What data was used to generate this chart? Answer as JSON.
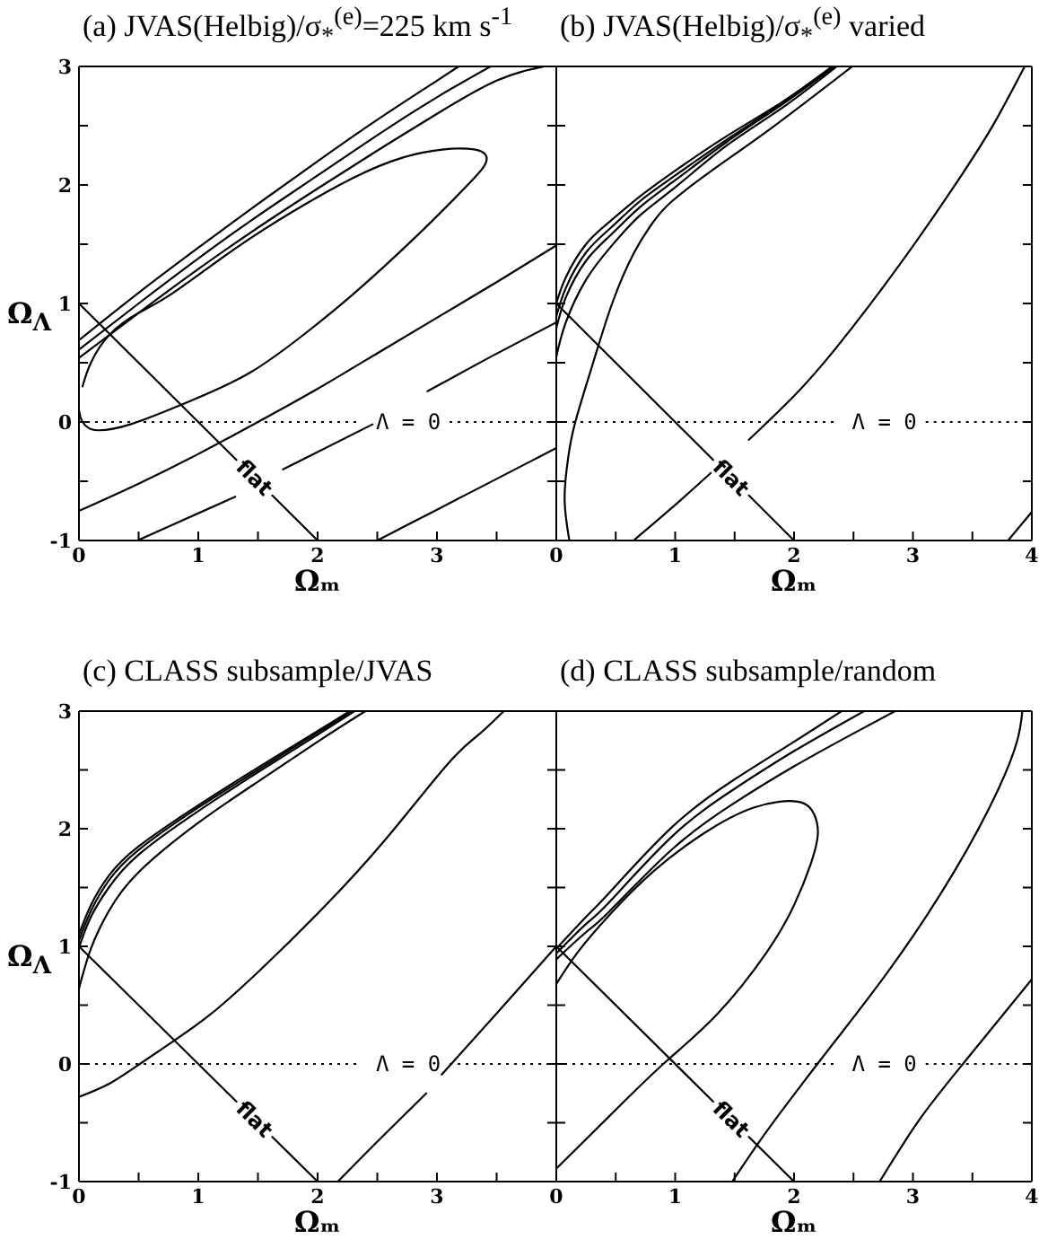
{
  "chart_data": [
    {
      "type": "line",
      "title": "(a) JVAS(Helbig)/σ$_{*}$$^{(e)}$=225 km s$^{-1}$",
      "xlabel": "Ωₘ",
      "ylabel": "Ω$_{Λ}$",
      "xlim": [
        0,
        4
      ],
      "ylim": [
        -1,
        3
      ],
      "xticks": [
        0,
        {
          "value": 0.5,
          "label": null
        },
        1,
        {
          "value": 1.5,
          "label": null
        },
        2,
        {
          "value": 2.5,
          "label": null
        },
        3,
        {
          "value": 3.5,
          "label": null
        },
        {
          "value": 4,
          "label": null
        }
      ],
      "yticks": [
        -1,
        {
          "value": -0.5,
          "label": null
        },
        0,
        {
          "value": 0.5,
          "label": null
        },
        1,
        {
          "value": 1.5,
          "label": null
        },
        2,
        {
          "value": 2.5,
          "label": null
        },
        3
      ],
      "ref_lines": [
        {
          "axis": "y",
          "value": 0,
          "label": "Λ = 0",
          "line_style": "dotted",
          "color": "#000000"
        }
      ],
      "series": [
        {
          "color": "#000000",
          "x": [
            0,
            0.5,
            1,
            1.5,
            2,
            2.5,
            3,
            3.18
          ],
          "values": [
            0.69,
            1.09,
            1.47,
            1.84,
            2.2,
            2.55,
            2.88,
            3
          ]
        },
        {
          "color": "#000000",
          "x": [
            0,
            0.5,
            1,
            1.5,
            2,
            2.5,
            3,
            3.45
          ],
          "values": [
            0.61,
            1,
            1.38,
            1.74,
            2.08,
            2.42,
            2.74,
            3
          ]
        },
        {
          "color": "#000000",
          "x": [
            0,
            0.5,
            1,
            1.5,
            2,
            2.5,
            3,
            3.5,
            3.9
          ],
          "values": [
            0.54,
            0.92,
            1.29,
            1.64,
            1.97,
            2.29,
            2.6,
            2.88,
            3
          ]
        },
        {
          "color": "#000000",
          "x": [
            0,
            0,
            0.03,
            0.08,
            0.16,
            0.43,
            0.94,
            1.44,
            1.9,
            2.3,
            2.81,
            3.21,
            3.39,
            3.41,
            3.31,
            3.06,
            2.71,
            2.3,
            1.8,
            1.29,
            0.79,
            0.5,
            0.26,
            0.1,
            0.03
          ],
          "values": [
            0.2,
            0.1,
            0,
            -0.05,
            -0.07,
            -0.02,
            0.18,
            0.42,
            0.75,
            1.08,
            1.55,
            1.95,
            2.15,
            2.25,
            2.3,
            2.3,
            2.23,
            2.06,
            1.78,
            1.45,
            1.09,
            0.92,
            0.74,
            0.5,
            0.3
          ]
        },
        {
          "color": "#000000",
          "x": [
            0,
            0.5,
            1,
            1.5,
            2,
            2.5,
            3,
            3.5,
            4
          ],
          "values": [
            -0.75,
            -0.52,
            -0.27,
            0,
            0.28,
            0.58,
            0.88,
            1.18,
            1.49
          ]
        },
        {
          "color": "#000000",
          "x": [
            0.49,
            1.31,
            1.51,
            1.71,
            2.46,
            2.69,
            2.92,
            3.45,
            4
          ],
          "values": [
            -1,
            -0.63,
            null,
            -0.4,
            -0.02,
            null,
            0.26,
            0.55,
            0.84
          ]
        },
        {
          "color": "#000000",
          "x": [
            2.5,
            3,
            3.5,
            4
          ],
          "values": [
            -1,
            -0.74,
            -0.48,
            -0.22
          ]
        },
        {
          "name": "flat",
          "color": "#000000",
          "x": [
            0,
            1.32,
            1.47,
            1.62,
            2
          ],
          "values": [
            1,
            -0.32,
            null,
            -0.62,
            -1
          ]
        }
      ]
    },
    {
      "type": "line",
      "title": "(b) JVAS(Helbig)/σ$_{*}$$^{(e)}$ varied",
      "xlabel": "Ωₘ",
      "xlim": [
        0,
        4
      ],
      "ylim": [
        -1,
        3
      ],
      "tick_labels": "x",
      "xticks": [
        0,
        {
          "value": 0.5,
          "label": null
        },
        1,
        {
          "value": 1.5,
          "label": null
        },
        2,
        {
          "value": 2.5,
          "label": null
        },
        3,
        {
          "value": 3.5,
          "label": null
        },
        4
      ],
      "yticks": [
        -1,
        {
          "value": -0.5,
          "label": null
        },
        0,
        {
          "value": 0.5,
          "label": null
        },
        1,
        {
          "value": 1.5,
          "label": null
        },
        2,
        {
          "value": 2.5,
          "label": null
        },
        3
      ],
      "ref_lines": [
        {
          "axis": "y",
          "value": 0,
          "label": "Λ = 0",
          "line_style": "dotted",
          "color": "#000000"
        }
      ],
      "series": [
        {
          "color": "#000000",
          "x": [
            0,
            0.08,
            0.25,
            0.46,
            0.7,
            1,
            1.43,
            1.9,
            2.32
          ],
          "values": [
            1,
            1.22,
            1.5,
            1.7,
            1.9,
            2.12,
            2.41,
            2.7,
            3
          ]
        },
        {
          "color": "#000000",
          "x": [
            0,
            0.08,
            0.25,
            0.46,
            0.7,
            1,
            1.43,
            1.9,
            2.33
          ],
          "values": [
            0.89,
            1.13,
            1.43,
            1.64,
            1.86,
            2.08,
            2.38,
            2.69,
            3
          ]
        },
        {
          "color": "#000000",
          "x": [
            0,
            0.08,
            0.25,
            0.46,
            0.7,
            1,
            1.43,
            1.9,
            2.34
          ],
          "values": [
            0.79,
            1.05,
            1.36,
            1.58,
            1.81,
            2.04,
            2.36,
            2.68,
            3
          ]
        },
        {
          "color": "#000000",
          "x": [
            0,
            0.08,
            0.25,
            0.46,
            0.7,
            1,
            1.43,
            1.9,
            2.36
          ],
          "values": [
            0.55,
            0.84,
            1.2,
            1.48,
            1.74,
            1.98,
            2.33,
            2.65,
            3
          ]
        },
        {
          "color": "#000000",
          "x": [
            0.11,
            0.07,
            0.1,
            0.16,
            0.31,
            0.47,
            0.65,
            0.81,
            0.97,
            1.32,
            1.81,
            2.49
          ],
          "values": [
            -1,
            -0.65,
            -0.3,
            0,
            0.5,
            1,
            1.42,
            1.68,
            1.86,
            2.13,
            2.48,
            3
          ]
        },
        {
          "color": "#000000",
          "x": [
            0.65,
            1,
            1.3,
            1.46,
            1.62,
            2,
            2.35,
            2.89,
            3.42,
            3.7,
            3.94
          ],
          "values": [
            -1,
            -0.7,
            -0.43,
            null,
            -0.15,
            0.22,
            0.62,
            1.33,
            2.1,
            2.55,
            3
          ]
        },
        {
          "color": "#000000",
          "x": [
            3.8,
            4
          ],
          "values": [
            -1,
            -0.76
          ]
        },
        {
          "name": "flat",
          "color": "#000000",
          "x": [
            0,
            1.32,
            1.47,
            1.62,
            2
          ],
          "values": [
            1,
            -0.32,
            null,
            -0.62,
            -1
          ]
        }
      ]
    },
    {
      "type": "line",
      "title": "(c) CLASS subsample/JVAS",
      "xlabel": "Ωₘ",
      "ylabel": "Ω$_{Λ}$",
      "xlim": [
        0,
        4
      ],
      "ylim": [
        -1,
        3
      ],
      "xticks": [
        0,
        {
          "value": 0.5,
          "label": null
        },
        1,
        {
          "value": 1.5,
          "label": null
        },
        2,
        {
          "value": 2.5,
          "label": null
        },
        3,
        {
          "value": 3.5,
          "label": null
        },
        {
          "value": 4,
          "label": null
        }
      ],
      "yticks": [
        -1,
        {
          "value": -0.5,
          "label": null
        },
        0,
        {
          "value": 0.5,
          "label": null
        },
        1,
        {
          "value": 1.5,
          "label": null
        },
        2,
        {
          "value": 2.5,
          "label": null
        },
        3
      ],
      "ref_lines": [
        {
          "axis": "y",
          "value": 0,
          "label": "Λ = 0",
          "line_style": "dotted",
          "color": "#000000"
        }
      ],
      "series": [
        {
          "color": "#000000",
          "x": [
            0,
            0.1,
            0.25,
            0.5,
            1,
            1.5,
            2,
            2.27
          ],
          "values": [
            1.1,
            1.35,
            1.6,
            1.85,
            2.2,
            2.52,
            2.83,
            3
          ]
        },
        {
          "color": "#000000",
          "x": [
            0,
            0.1,
            0.25,
            0.5,
            1,
            1.5,
            2,
            2.29
          ],
          "values": [
            1.05,
            1.3,
            1.56,
            1.82,
            2.18,
            2.5,
            2.82,
            3
          ]
        },
        {
          "color": "#000000",
          "x": [
            0,
            0.1,
            0.25,
            0.5,
            1,
            1.5,
            2,
            2.31
          ],
          "values": [
            0.99,
            1.25,
            1.5,
            1.78,
            2.15,
            2.48,
            2.8,
            3
          ]
        },
        {
          "color": "#000000",
          "x": [
            0,
            0.1,
            0.25,
            0.5,
            1,
            1.5,
            2,
            2.4
          ],
          "values": [
            0.64,
            0.98,
            1.3,
            1.63,
            2.05,
            2.4,
            2.74,
            3
          ]
        },
        {
          "color": "#000000",
          "x": [
            0,
            0.25,
            0.51,
            0.8,
            1.1,
            1.51,
            2.04,
            2.57,
            3.09,
            3.35,
            3.56
          ],
          "values": [
            -0.28,
            -0.17,
            0,
            0.2,
            0.42,
            0.79,
            1.32,
            1.91,
            2.55,
            2.8,
            3
          ]
        },
        {
          "color": "#000000",
          "x": [
            2.17,
            2.5,
            2.91,
            2.97,
            3.04,
            3.5,
            4
          ],
          "values": [
            -1,
            -0.66,
            -0.25,
            null,
            -0.09,
            0.43,
            1
          ]
        },
        {
          "name": "flat",
          "color": "#000000",
          "x": [
            0,
            1.32,
            1.47,
            1.62,
            2
          ],
          "values": [
            1,
            -0.32,
            null,
            -0.62,
            -1
          ]
        }
      ]
    },
    {
      "type": "line",
      "title": "(d) CLASS subsample/random",
      "xlabel": "Ωₘ",
      "xlim": [
        0,
        4
      ],
      "ylim": [
        -1,
        3
      ],
      "tick_labels": "x",
      "xticks": [
        0,
        {
          "value": 0.5,
          "label": null
        },
        1,
        {
          "value": 1.5,
          "label": null
        },
        2,
        {
          "value": 2.5,
          "label": null
        },
        3,
        {
          "value": 3.5,
          "label": null
        },
        4
      ],
      "yticks": [
        -1,
        {
          "value": -0.5,
          "label": null
        },
        0,
        {
          "value": 0.5,
          "label": null
        },
        1,
        {
          "value": 1.5,
          "label": null
        },
        2,
        {
          "value": 2.5,
          "label": null
        },
        3
      ],
      "ref_lines": [
        {
          "axis": "y",
          "value": 0,
          "label": "Λ = 0",
          "line_style": "dotted",
          "color": "#000000"
        }
      ],
      "series": [
        {
          "color": "#000000",
          "x": [
            0,
            0.25,
            0.45,
            0.98,
            1.5,
            2,
            2.4
          ],
          "values": [
            0.98,
            1.25,
            1.46,
            2.02,
            2.42,
            2.74,
            3
          ]
        },
        {
          "color": "#000000",
          "x": [
            0,
            0.25,
            0.45,
            0.98,
            1.5,
            2,
            2.59
          ],
          "values": [
            0.94,
            1.19,
            1.38,
            1.94,
            2.34,
            2.66,
            3
          ]
        },
        {
          "color": "#000000",
          "x": [
            0,
            0.25,
            0.45,
            0.98,
            1.5,
            2,
            2.5,
            2.85
          ],
          "values": [
            0.89,
            1.12,
            1.3,
            1.83,
            2.22,
            2.53,
            2.81,
            3
          ]
        },
        {
          "color": "#000000",
          "x": [
            0,
            0.45,
            0.9,
            1.35,
            1.77,
            2,
            2.14,
            2.2,
            2.17,
            2.03,
            1.66,
            1.24,
            0.82,
            0.45,
            0.18,
            0
          ],
          "values": [
            -0.89,
            -0.44,
            0,
            0.42,
            0.95,
            1.35,
            1.7,
            1.95,
            2.12,
            2.23,
            2.18,
            1.96,
            1.64,
            1.27,
            0.95,
            0.68
          ]
        },
        {
          "color": "#000000",
          "x": [
            1.48,
            1.75,
            2.03,
            2.35,
            2.83,
            3.35,
            3.72,
            3.88,
            3.92
          ],
          "values": [
            -1,
            -0.6,
            -0.22,
            0.2,
            0.84,
            1.64,
            2.34,
            2.76,
            3
          ]
        },
        {
          "color": "#000000",
          "x": [
            2.72,
            3.05,
            3.42,
            4
          ],
          "values": [
            -1,
            -0.48,
            0,
            0.72
          ]
        },
        {
          "name": "flat",
          "color": "#000000",
          "x": [
            0,
            1.32,
            1.47,
            1.62,
            2
          ],
          "values": [
            1,
            -0.32,
            null,
            -0.62,
            -1
          ]
        }
      ]
    }
  ]
}
